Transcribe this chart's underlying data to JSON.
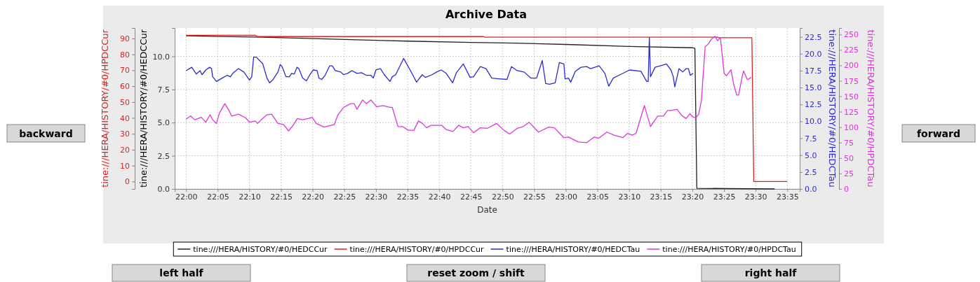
{
  "chart_data": [
    {
      "type": "line",
      "title": "Archive Data",
      "xlabel": "Date",
      "ylabel": "tine:///HERA/HISTORY/#0/HEDCCur",
      "y2label": "tine:///HERA/HISTORY/#0/HPDCCur",
      "y3label": "tine:///HERA/HISTORY/#0/HEDCTau",
      "annotations": [
        "backward",
        "forward",
        "left half",
        "reset zoom / shift",
        "right half"
      ],
      "grid": true,
      "legend": "bottom",
      "xlim": [
        21.97,
        23.616
      ],
      "xticks": [
        {
          "value": 22,
          "label": "22:00"
        },
        {
          "value": 22.0833,
          "label": "22:05"
        },
        {
          "value": 22.1667,
          "label": "22:10"
        },
        {
          "value": 22.25,
          "label": "22:15"
        },
        {
          "value": 22.3333,
          "label": "22:20"
        },
        {
          "value": 22.4167,
          "label": "22:25"
        },
        {
          "value": 22.5,
          "label": "22:30"
        },
        {
          "value": 22.5833,
          "label": "22:35"
        },
        {
          "value": 22.6667,
          "label": "22:40"
        },
        {
          "value": 22.75,
          "label": "22:45"
        },
        {
          "value": 22.8333,
          "label": "22:50"
        },
        {
          "value": 22.9167,
          "label": "22:55"
        },
        {
          "value": 23,
          "label": "23:00"
        },
        {
          "value": 23.0833,
          "label": "23:05"
        },
        {
          "value": 23.1667,
          "label": "23:10"
        },
        {
          "value": 23.25,
          "label": "23:15"
        },
        {
          "value": 23.3333,
          "label": "23:20"
        },
        {
          "value": 23.4167,
          "label": "23:25"
        },
        {
          "value": 23.5,
          "label": "23:30"
        },
        {
          "value": 23.5833,
          "label": "23:35"
        }
      ],
      "ylim": [
        0,
        12.14
      ],
      "yticks": [
        {
          "value": 0,
          "label": "0.0"
        },
        {
          "value": 2.5,
          "label": "2.5"
        },
        {
          "value": 5,
          "label": "5.0"
        },
        {
          "value": 7.5,
          "label": "7.5"
        },
        {
          "value": 10,
          "label": "10.0"
        }
      ],
      "y2lim": [
        -4.68,
        96.6
      ],
      "y2ticks": [
        0,
        10,
        20,
        30,
        40,
        50,
        60,
        70,
        80,
        90
      ],
      "y3lim": [
        0,
        23.81
      ],
      "y3ticks": [
        {
          "value": 0,
          "label": "0.0"
        },
        {
          "value": 2.5,
          "label": "2.5"
        },
        {
          "value": 5,
          "label": "5.0"
        },
        {
          "value": 7.5,
          "label": "7.5"
        },
        {
          "value": 10,
          "label": "10.0"
        },
        {
          "value": 12.5,
          "label": "12.5"
        },
        {
          "value": 15,
          "label": "15.0"
        },
        {
          "value": 17.5,
          "label": "17.5"
        },
        {
          "value": 20,
          "label": "20.0"
        },
        {
          "value": 22.5,
          "label": "22.5"
        }
      ],
      "series": [
        {
          "name": "tine:///HERA/HISTORY/#0/HEDCCur",
          "color": "#222222",
          "axis": "y",
          "x": [
            22,
            22.083,
            22.2,
            22.317,
            22.45,
            22.517,
            22.583,
            22.75,
            22.867,
            23,
            23.167,
            23.333,
            23.34,
            23.345,
            23.417,
            23.55
          ],
          "values": [
            11.55,
            11.5,
            11.45,
            11.35,
            11.25,
            11.2,
            11.15,
            11.05,
            11.0,
            10.9,
            10.75,
            10.65,
            10.6,
            0.05,
            0.03,
            0
          ]
        },
        {
          "name": "tine:///HERA/HISTORY/#0/HPDCCur",
          "color": "#dd2222",
          "axis": "y2",
          "x": [
            22,
            22.183,
            22.187,
            22.783,
            22.787,
            23.4,
            23.403,
            23.49,
            23.495,
            23.583
          ],
          "values": [
            92,
            92,
            91.2,
            91.2,
            90.8,
            90.8,
            90.5,
            90.5,
            0,
            0
          ]
        },
        {
          "name": "tine:///HERA/HISTORY/#0/HEDCTau",
          "color": "#2b2bcc",
          "axis": "y3",
          "x": [
            22,
            22.015,
            22.027,
            22.037,
            22.042,
            22.052,
            22.062,
            22.067,
            22.07,
            22.08,
            22.095,
            22.108,
            22.117,
            22.123,
            22.138,
            22.152,
            22.167,
            22.173,
            22.178,
            22.185,
            22.202,
            22.213,
            22.22,
            22.228,
            22.242,
            22.248,
            22.253,
            22.263,
            22.272,
            22.278,
            22.285,
            22.292,
            22.297,
            22.307,
            22.317,
            22.325,
            22.335,
            22.345,
            22.35,
            22.357,
            22.365,
            22.378,
            22.385,
            22.393,
            22.407,
            22.415,
            22.425,
            22.437,
            22.45,
            22.462,
            22.475,
            22.487,
            22.493,
            22.5,
            22.512,
            22.522,
            22.537,
            22.543,
            22.552,
            22.573,
            22.588,
            22.607,
            22.622,
            22.63,
            22.648,
            22.66,
            22.672,
            22.685,
            22.702,
            22.712,
            22.73,
            22.748,
            22.757,
            22.775,
            22.79,
            22.805,
            22.823,
            22.845,
            22.857,
            22.872,
            22.89,
            22.908,
            22.923,
            22.938,
            22.947,
            22.957,
            22.972,
            22.983,
            22.995,
            22.998,
            23.007,
            23.013,
            23.025,
            23.04,
            23.055,
            23.065,
            23.088,
            23.103,
            23.113,
            23.125,
            23.143,
            23.168,
            23.198,
            23.213,
            23.217,
            23.22,
            23.223,
            23.235,
            23.255,
            23.265,
            23.277,
            23.283,
            23.287,
            23.298,
            23.308,
            23.317,
            23.323,
            23.328,
            23.335
          ],
          "values": [
            17.5,
            18.0,
            17.0,
            17.5,
            16.9,
            17.6,
            18.0,
            17.8,
            16.6,
            15.9,
            16.4,
            16.8,
            16.6,
            17.1,
            17.8,
            17.3,
            16.1,
            16.6,
            19.5,
            19.5,
            18.5,
            16.4,
            15.7,
            16.1,
            17.3,
            18.4,
            18.1,
            16.6,
            16.6,
            17.1,
            17.0,
            18.0,
            17.8,
            16.4,
            16.0,
            16.8,
            17.6,
            17.5,
            16.4,
            16.2,
            16.7,
            18.2,
            18.2,
            17.5,
            17.3,
            16.9,
            17.1,
            17.5,
            17.1,
            17.2,
            16.8,
            16.8,
            16.4,
            17.6,
            17.8,
            16.9,
            15.9,
            16.6,
            16.9,
            19.3,
            17.8,
            15.8,
            16.9,
            16.5,
            16.9,
            17.3,
            17.6,
            17.1,
            15.7,
            17.2,
            18.5,
            16.5,
            16.6,
            18.1,
            17.8,
            16.4,
            16.3,
            16.2,
            18.1,
            17.5,
            17.3,
            16.4,
            16.4,
            19.0,
            15.6,
            15.5,
            15.7,
            18.7,
            18.5,
            16.3,
            16.4,
            15.8,
            17.4,
            18.0,
            18.1,
            17.8,
            18.2,
            17.1,
            15.2,
            16.4,
            16.9,
            17.6,
            17.4,
            15.9,
            15.9,
            22.4,
            16.6,
            18.0,
            18.3,
            18.5,
            17.6,
            16.6,
            15.1,
            17.8,
            17.3,
            17.8,
            17.8,
            16.8,
            17.1
          ]
        }
      ]
    },
    {
      "type": "line",
      "ylabel": "tine:///HERA/HISTORY/#0/HPDCTau",
      "tick_labels": "y",
      "xlim": [
        21.97,
        23.616
      ],
      "ylim": [
        0,
        260.5
      ],
      "yticks": [
        0,
        25,
        50,
        75,
        100,
        125,
        150,
        175,
        200,
        225,
        250
      ],
      "series": [
        {
          "name": "tine:///HERA/HISTORY/#0/HPDCTau",
          "color": "#e033e0",
          "x": [
            22,
            22.012,
            22.023,
            22.04,
            22.052,
            22.063,
            22.07,
            22.08,
            22.088,
            22.102,
            22.113,
            22.12,
            22.138,
            22.157,
            22.167,
            22.182,
            22.188,
            22.198,
            22.213,
            22.225,
            22.242,
            22.257,
            22.27,
            22.282,
            22.293,
            22.307,
            22.322,
            22.332,
            22.343,
            22.363,
            22.382,
            22.39,
            22.4,
            22.415,
            22.433,
            22.443,
            22.45,
            22.465,
            22.475,
            22.487,
            22.502,
            22.518,
            22.537,
            22.543,
            22.558,
            22.57,
            22.585,
            22.6,
            22.612,
            22.622,
            22.633,
            22.645,
            22.673,
            22.685,
            22.703,
            22.718,
            22.73,
            22.743,
            22.757,
            22.775,
            22.793,
            22.818,
            22.837,
            22.852,
            22.872,
            22.888,
            22.903,
            22.928,
            22.955,
            22.97,
            22.995,
            23.007,
            23.033,
            23.055,
            23.075,
            23.087,
            23.108,
            23.127,
            23.15,
            23.163,
            23.175,
            23.185,
            23.207,
            23.223,
            23.242,
            23.257,
            23.268,
            23.277,
            23.293,
            23.305,
            23.317,
            23.327,
            23.333,
            23.342,
            23.35,
            23.357,
            23.367,
            23.377,
            23.383,
            23.393,
            23.4,
            23.407,
            23.417,
            23.423,
            23.435,
            23.442,
            23.45,
            23.455,
            23.463,
            23.468,
            23.478,
            23.485,
            23.488
          ],
          "values": [
            113,
            118,
            112,
            116,
            108,
            120,
            112,
            106,
            123,
            138,
            127,
            118,
            121,
            115,
            108,
            110,
            106,
            112,
            120,
            121,
            106,
            104,
            94,
            103,
            114,
            112,
            114,
            116,
            106,
            100,
            103,
            104,
            120,
            132,
            138,
            138,
            129,
            144,
            138,
            144,
            133,
            135,
            132,
            132,
            101,
            101,
            95,
            95,
            110,
            106,
            99,
            103,
            103,
            96,
            93,
            103,
            99,
            101,
            91,
            99,
            98,
            106,
            95,
            89,
            98,
            101,
            108,
            92,
            100,
            99,
            83,
            84,
            76,
            75,
            84,
            82,
            92,
            87,
            83,
            90,
            87,
            90,
            135,
            101,
            118,
            118,
            127,
            127,
            129,
            119,
            114,
            122,
            117,
            115,
            121,
            143,
            230,
            236,
            242,
            247,
            240,
            245,
            187,
            183,
            193,
            170,
            152,
            152,
            177,
            191,
            177,
            179,
            181
          ]
        }
      ]
    }
  ]
}
